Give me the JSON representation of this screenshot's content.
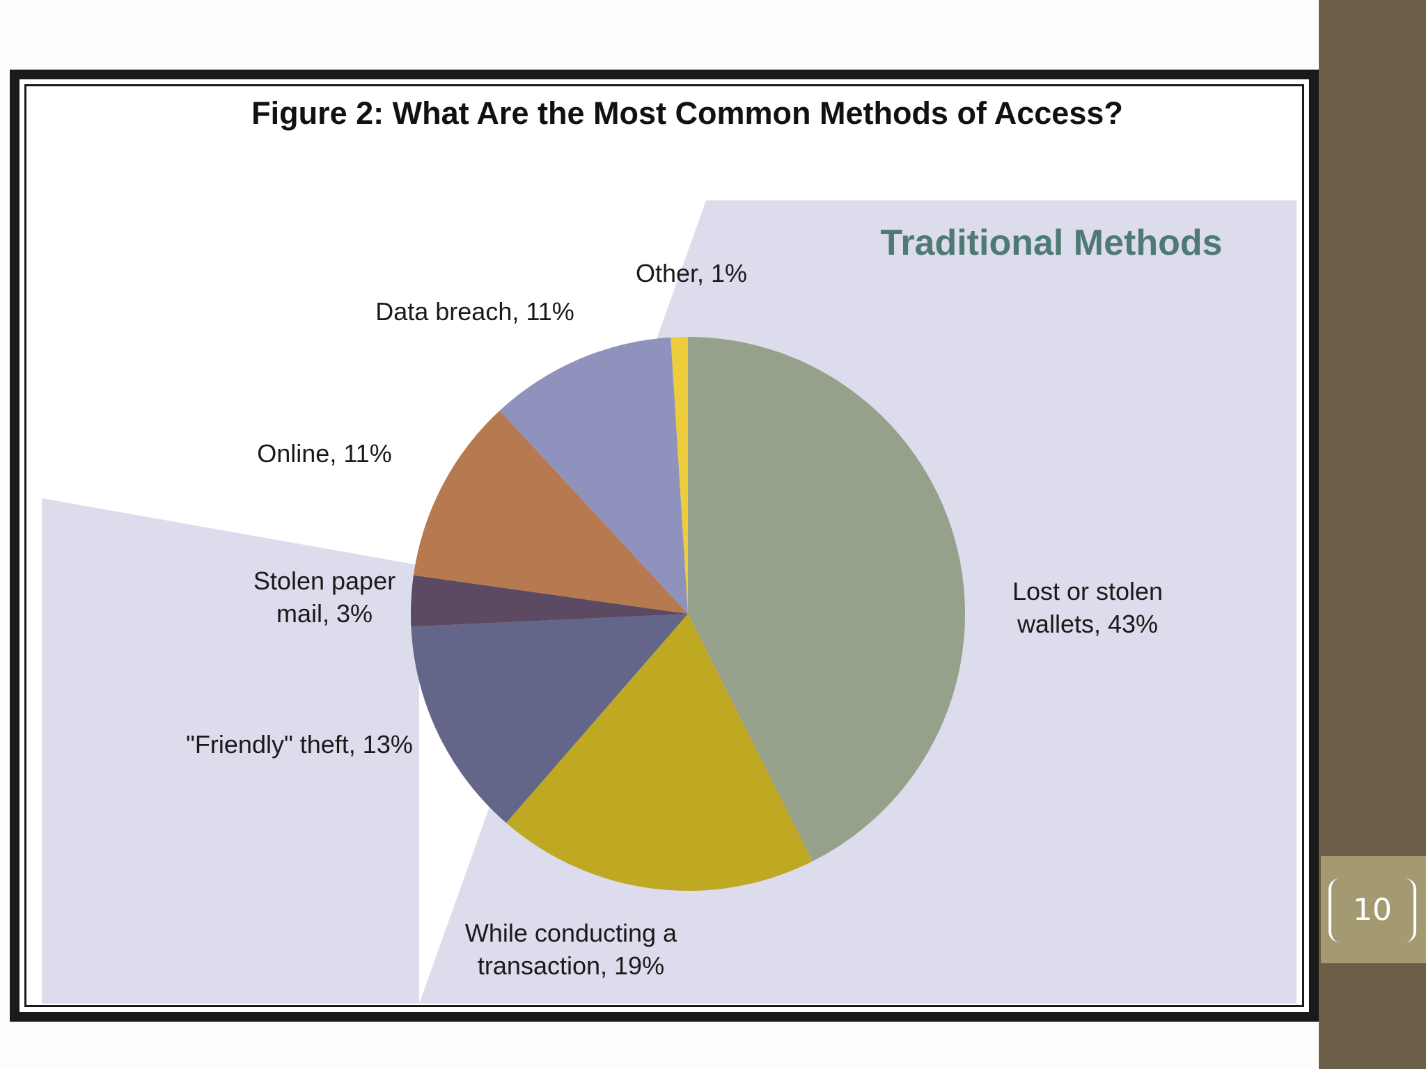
{
  "slide": {
    "page_number": "10",
    "colors": {
      "sidebar": "#6b5f47",
      "page_box": "#a39a72",
      "frame": "#1a1a1a",
      "region_fill": "#dcdcec"
    }
  },
  "chart_data": {
    "type": "pie",
    "title": "Figure 2: What Are the Most Common Methods of Access?",
    "region_label": "Traditional Methods",
    "slices": [
      {
        "label_lines": [
          "Lost or stolen",
          "wallets, 43%"
        ],
        "category": "Lost or stolen wallets",
        "value": 43,
        "color": "#95a18a"
      },
      {
        "label_lines": [
          "While conducting a",
          "transaction, 19%"
        ],
        "category": "While conducting a transaction",
        "value": 19,
        "color": "#bfa923"
      },
      {
        "label_lines": [
          "\"Friendly\" theft, 13%"
        ],
        "category": "\"Friendly\" theft",
        "value": 13,
        "color": "#636688"
      },
      {
        "label_lines": [
          "Stolen paper",
          "mail, 3%"
        ],
        "category": "Stolen paper mail",
        "value": 3,
        "color": "#5c4a62"
      },
      {
        "label_lines": [
          "Online, 11%"
        ],
        "category": "Online",
        "value": 11,
        "color": "#b77a50"
      },
      {
        "label_lines": [
          "Data breach, 11%"
        ],
        "category": "Data breach",
        "value": 11,
        "color": "#8e92bc"
      },
      {
        "label_lines": [
          "Other, 1%"
        ],
        "category": "Other",
        "value": 1,
        "color": "#edcd3c"
      }
    ]
  }
}
